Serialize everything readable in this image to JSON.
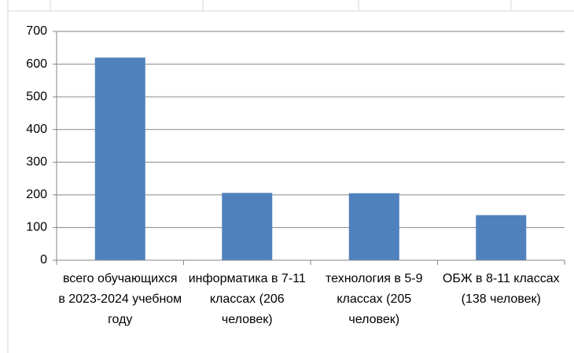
{
  "chart_data": {
    "type": "bar",
    "categories": [
      "всего обучающихся в 2023-2024 учебном году",
      "информатика в 7-11 классах (206 человек)",
      "технология в 5-9 классах (205 человек)",
      "ОБЖ в 8-11 классах (138 человек)"
    ],
    "values": [
      620,
      206,
      205,
      138
    ],
    "color": "#4f81bd",
    "ylim": [
      0,
      700
    ],
    "yticks": [
      0,
      100,
      200,
      300,
      400,
      500,
      600,
      700
    ],
    "grid": true
  }
}
